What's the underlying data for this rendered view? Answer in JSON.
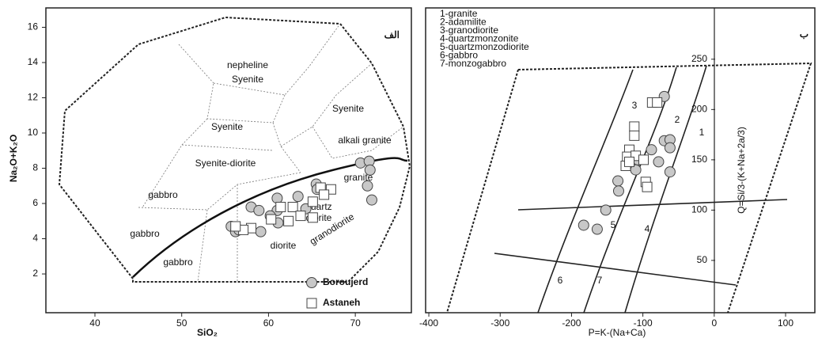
{
  "chart_data": [
    {
      "type": "scatter",
      "title": "الف",
      "x_label": "SiO₂",
      "y_label": "Na₂O+K₂O",
      "xlim": [
        34.35,
        76.46
      ],
      "ylim": [
        -0.2,
        17.1
      ],
      "xticks": [
        40,
        50,
        60,
        70
      ],
      "yticks": [
        2,
        4,
        6,
        8,
        10,
        12,
        14,
        16
      ],
      "legend": "lower right",
      "annotations": [
        "nepheline",
        "Syenite",
        "Syenite",
        "Syenite",
        "alkali granite",
        "Syenite-diorite",
        "granite",
        "gabbro",
        "gabbro",
        "gabbro",
        "quartz",
        "diorite",
        "diorite",
        "granodiorite"
      ],
      "series": [
        {
          "name": "Boroujerd",
          "marker": "circle",
          "color": "#c8c8c8",
          "x": [
            70.6,
            71.6,
            71.7,
            71.4,
            71.9,
            65.5,
            65.6,
            63.4,
            61.0,
            58.0,
            58.9,
            61.0,
            60.2,
            61.1,
            59.1,
            55.7,
            56.2,
            56.6,
            64.3
          ],
          "values": [
            8.3,
            8.4,
            7.9,
            7.0,
            6.2,
            7.1,
            6.8,
            6.4,
            6.3,
            5.8,
            5.6,
            5.6,
            5.3,
            4.9,
            4.4,
            4.7,
            4.4,
            4.5,
            5.7
          ]
        },
        {
          "name": "Astaneh",
          "marker": "square",
          "color": "#ffffff",
          "x": [
            66.0,
            67.2,
            66.4,
            65.1,
            62.8,
            63.7,
            62.3,
            60.3,
            58.0,
            57.1,
            56.2,
            61.4,
            65.1
          ],
          "values": [
            6.9,
            6.8,
            6.5,
            6.1,
            5.8,
            5.3,
            5.0,
            5.1,
            4.6,
            4.5,
            4.7,
            5.8,
            5.2
          ]
        }
      ]
    },
    {
      "type": "scatter",
      "title": "ب",
      "x_label": "P=K-(Na+Ca)",
      "y_label": "Q=Si/3-(K+Na+2a/3)",
      "xlim": [
        -404.5,
        141
      ],
      "ylim": [
        -2,
        301
      ],
      "xticks": [
        -400,
        -300,
        -200,
        -100,
        0,
        100
      ],
      "yticks": [
        50,
        100,
        150,
        200,
        250
      ],
      "key": [
        "1-granite",
        "2-adamilite",
        "3-granodiorite",
        "4-quartzmonzonite",
        "5-quartzmonzodiorite",
        "6-gabbro",
        "7-monzogabbro"
      ],
      "annotations": [
        "1",
        "2",
        "3",
        "4",
        "5",
        "6",
        "7"
      ],
      "series": [
        {
          "name": "Boroujerd",
          "marker": "circle",
          "color": "#c8c8c8",
          "x": [
            -70,
            -70,
            -62,
            -62,
            -78,
            -62,
            -107,
            -110,
            -135,
            -134,
            -152,
            -183,
            -164,
            -88
          ],
          "values": [
            213,
            169,
            170,
            162,
            148,
            138,
            150,
            140,
            129,
            119,
            100,
            85,
            81,
            160
          ]
        },
        {
          "name": "Astaneh",
          "marker": "square",
          "color": "#ffffff",
          "x": [
            -87,
            -80,
            -112,
            -112,
            -119,
            -122,
            -110,
            -99,
            -124,
            -96,
            -94,
            -119
          ],
          "values": [
            207,
            207,
            183,
            174,
            160,
            153,
            154,
            150,
            144,
            128,
            123,
            148
          ]
        }
      ]
    }
  ]
}
